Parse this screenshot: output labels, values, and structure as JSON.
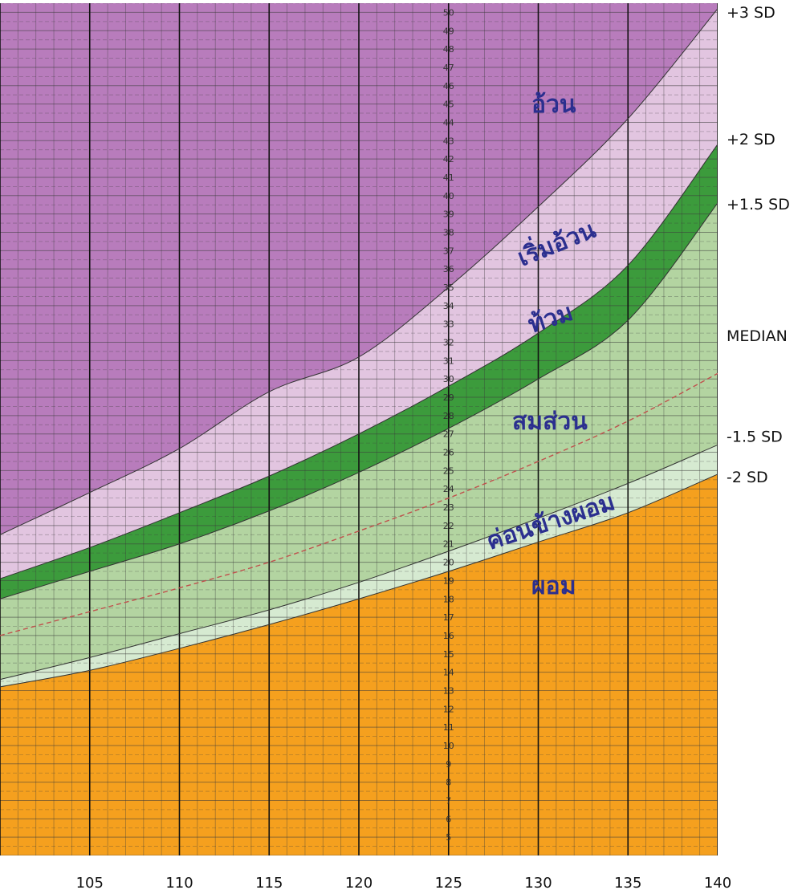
{
  "chart_data": {
    "type": "area",
    "title": "",
    "xlabel": "",
    "ylabel": "",
    "xlim": [
      100,
      140
    ],
    "ylim": [
      4,
      50.5
    ],
    "x_ticks": [
      105,
      110,
      115,
      120,
      125,
      130,
      135,
      140
    ],
    "y_ticks": [
      5,
      6,
      7,
      8,
      9,
      10,
      11,
      12,
      13,
      14,
      15,
      16,
      17,
      18,
      19,
      20,
      21,
      22,
      23,
      24,
      25,
      26,
      27,
      28,
      29,
      30,
      31,
      32,
      33,
      34,
      35,
      36,
      37,
      38,
      39,
      40,
      41,
      42,
      43,
      44,
      45,
      46,
      47,
      48,
      49,
      50
    ],
    "x": [
      100,
      105,
      110,
      115,
      120,
      125,
      130,
      135,
      140
    ],
    "series": [
      {
        "name": "+3 SD",
        "values": [
          21.5,
          23.8,
          26.2,
          29.3,
          31.2,
          35.0,
          39.4,
          44.2,
          50.2
        ]
      },
      {
        "name": "+2 SD",
        "values": [
          19.1,
          20.8,
          22.7,
          24.7,
          27.0,
          29.6,
          32.5,
          36.2,
          42.8
        ]
      },
      {
        "name": "+1.5 SD",
        "values": [
          18.0,
          19.5,
          21.0,
          22.8,
          24.9,
          27.3,
          30.0,
          33.2,
          39.6
        ]
      },
      {
        "name": "MEDIAN",
        "values": [
          16.0,
          17.3,
          18.6,
          20.0,
          21.7,
          23.5,
          25.5,
          27.7,
          30.3
        ]
      },
      {
        "name": "-1.5 SD",
        "values": [
          13.6,
          14.8,
          16.1,
          17.4,
          18.9,
          20.6,
          22.4,
          24.3,
          26.4
        ]
      },
      {
        "name": "-2 SD",
        "values": [
          13.2,
          14.1,
          15.3,
          16.6,
          18.0,
          19.5,
          21.1,
          22.7,
          24.8
        ]
      }
    ],
    "zones": [
      {
        "label": "อ้วน",
        "color": "#b87cbc"
      },
      {
        "label": "เริ่มอ้วน",
        "color": "#e2c5e0"
      },
      {
        "label": "ท้วม",
        "color": "#3c9b3c"
      },
      {
        "label": "สมส่วน",
        "color": "#b3d4a1"
      },
      {
        "label": "ค่อนข้างผอม",
        "color": "#d6ead1"
      },
      {
        "label": "ผอม",
        "color": "#f5a01e"
      }
    ],
    "grid": true,
    "legend": "right-edge line labels"
  }
}
